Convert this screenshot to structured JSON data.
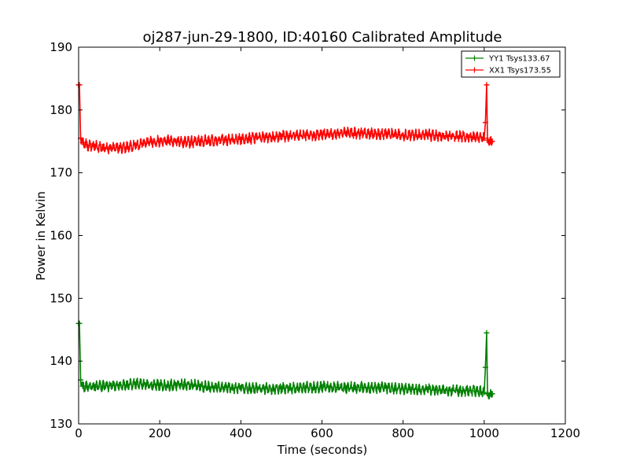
{
  "chart_data": {
    "type": "line",
    "title": "oj287-jun-29-1800, ID:40160 Calibrated Amplitude",
    "xlabel": "Time (seconds)",
    "ylabel": "Power in Kelvin",
    "xlim": [
      0,
      1200
    ],
    "ylim": [
      130,
      190
    ],
    "xticks": [
      0,
      200,
      400,
      600,
      800,
      1000,
      1200
    ],
    "yticks": [
      130,
      140,
      150,
      160,
      170,
      180,
      190
    ],
    "grid": false,
    "legend_position": "top-right",
    "series": [
      {
        "name": "YY1 Tsys133.67",
        "color": "#008000",
        "x": [
          0,
          2,
          5,
          10,
          20,
          40,
          60,
          80,
          100,
          120,
          140,
          160,
          180,
          200,
          220,
          240,
          260,
          280,
          300,
          320,
          340,
          360,
          380,
          400,
          420,
          440,
          460,
          480,
          500,
          520,
          540,
          560,
          580,
          600,
          620,
          640,
          660,
          680,
          700,
          720,
          740,
          760,
          780,
          800,
          820,
          840,
          860,
          880,
          900,
          920,
          940,
          960,
          980,
          1000,
          1003,
          1006,
          1008,
          1012,
          1016,
          1020
        ],
        "y": [
          146,
          146,
          137,
          136,
          136,
          135.9,
          136,
          136.1,
          136.2,
          136.2,
          136.3,
          136.3,
          136.2,
          136.2,
          136.1,
          136.2,
          136.2,
          136.2,
          136,
          135.9,
          135.8,
          135.8,
          135.7,
          135.8,
          135.7,
          135.7,
          135.6,
          135.6,
          135.6,
          135.7,
          135.7,
          135.8,
          135.8,
          135.9,
          135.8,
          135.8,
          135.7,
          135.8,
          135.8,
          135.7,
          135.8,
          135.7,
          135.6,
          135.6,
          135.5,
          135.5,
          135.5,
          135.4,
          135.4,
          135.3,
          135.3,
          135.3,
          135.2,
          135,
          139,
          144.5,
          134.8,
          134.6,
          134.7,
          134.8
        ]
      },
      {
        "name": "XX1 Tsys173.55",
        "color": "#ff0000",
        "x": [
          0,
          2,
          5,
          10,
          20,
          40,
          60,
          80,
          100,
          120,
          140,
          160,
          180,
          200,
          220,
          240,
          260,
          280,
          300,
          320,
          340,
          360,
          380,
          400,
          420,
          440,
          460,
          480,
          500,
          520,
          540,
          560,
          580,
          600,
          620,
          640,
          660,
          680,
          700,
          720,
          740,
          760,
          780,
          800,
          820,
          840,
          860,
          880,
          900,
          920,
          940,
          960,
          980,
          1000,
          1003,
          1006,
          1008,
          1012,
          1016,
          1020
        ],
        "y": [
          184,
          184,
          175.5,
          174.8,
          174.4,
          174.2,
          174,
          173.9,
          174,
          174.1,
          174.4,
          174.7,
          174.9,
          175,
          175.1,
          175,
          174.9,
          174.9,
          175,
          175.1,
          175.2,
          175.2,
          175.3,
          175.3,
          175.5,
          175.6,
          175.6,
          175.7,
          175.8,
          175.9,
          175.9,
          176,
          176,
          176.1,
          176.2,
          176.3,
          176.3,
          176.3,
          176.3,
          176.2,
          176.2,
          176.2,
          176.1,
          176,
          176,
          176,
          176,
          175.9,
          175.9,
          175.8,
          175.8,
          175.7,
          175.6,
          175.5,
          178,
          184,
          175.2,
          174.9,
          174.9,
          175
        ]
      }
    ]
  }
}
